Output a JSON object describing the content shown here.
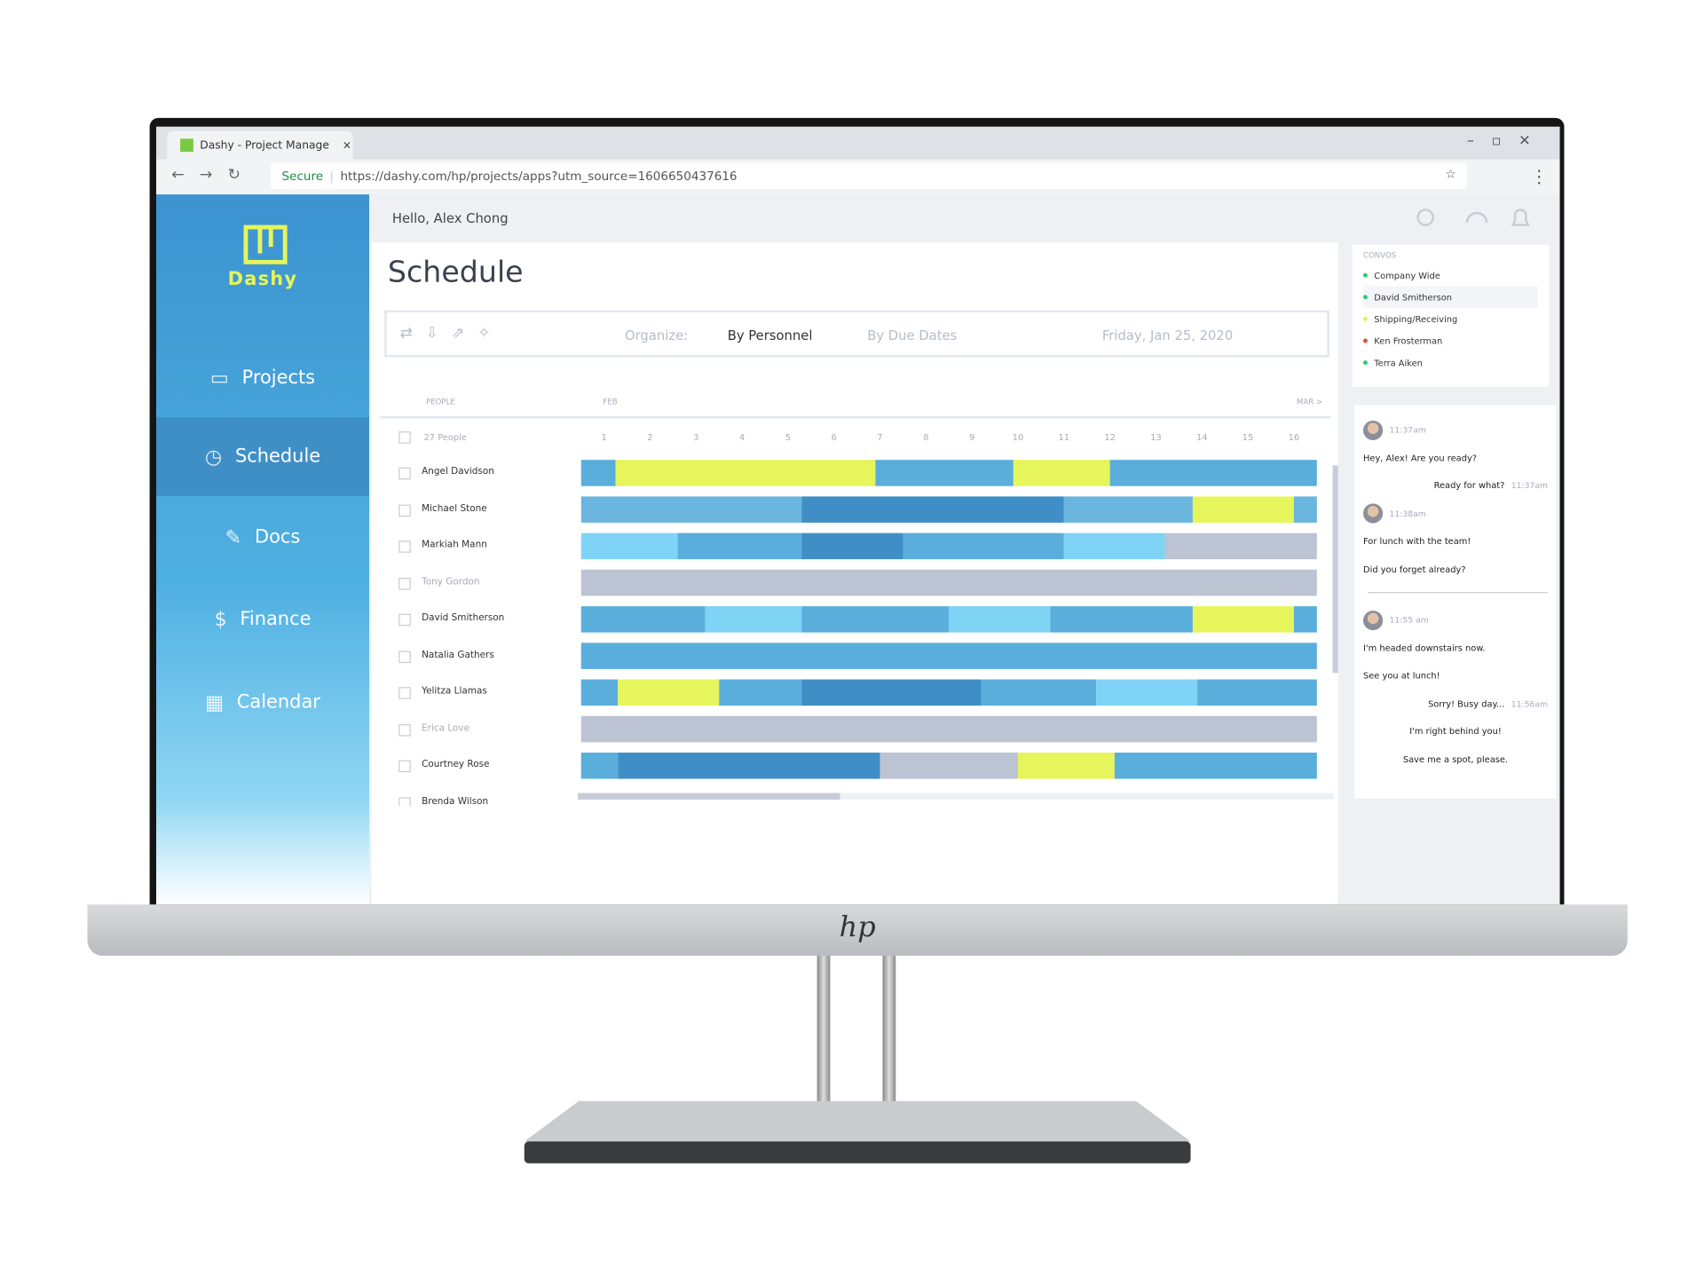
{
  "browser": {
    "tab_title": "Dashy - Project Manage",
    "secure": "Secure",
    "url": "https://dashy.com/hp/projects/apps?utm_source=1606650437616"
  },
  "sidebar": {
    "logo": "Dashy",
    "nav": [
      "Projects",
      "Schedule",
      "Docs",
      "Finance",
      "Calendar"
    ],
    "active": 1
  },
  "header": {
    "greeting": "Hello, Alex Chong"
  },
  "page": {
    "title": "Schedule"
  },
  "toolbar": {
    "organize": "Organize:",
    "by_personnel": "By Personnel",
    "by_due_dates": "By Due Dates",
    "date": "Friday, Jan 25, 2020"
  },
  "schedule": {
    "people_header": "PEOPLE",
    "month_start": "FEB",
    "month_end": "MAR >",
    "people_count": "27 People",
    "days": [
      1,
      2,
      3,
      4,
      5,
      6,
      7,
      8,
      9,
      10,
      11,
      12,
      13,
      14,
      15,
      16
    ],
    "rows": [
      {
        "name": "Angel Davidson",
        "segments": [
          {
            "start": 1,
            "end": 1.75,
            "color": "#5aaedc"
          },
          {
            "start": 1.75,
            "end": 7.4,
            "color": "#e6f55c"
          },
          {
            "start": 7.4,
            "end": 10.4,
            "color": "#5aaedc"
          },
          {
            "start": 10.4,
            "end": 12.5,
            "color": "#e6f55c"
          },
          {
            "start": 12.5,
            "end": 17,
            "color": "#5aaedc"
          }
        ]
      },
      {
        "name": "Michael Stone",
        "segments": [
          {
            "start": 1,
            "end": 5.8,
            "color": "#6ab5de"
          },
          {
            "start": 5.8,
            "end": 11.5,
            "color": "#3f8fc6"
          },
          {
            "start": 11.5,
            "end": 14.3,
            "color": "#6ab5de"
          },
          {
            "start": 14.3,
            "end": 16.5,
            "color": "#e6f55c"
          },
          {
            "start": 16.5,
            "end": 17,
            "color": "#6ab5de"
          }
        ]
      },
      {
        "name": "Markiah Mann",
        "segments": [
          {
            "start": 1,
            "end": 3.1,
            "color": "#7fd4f6"
          },
          {
            "start": 3.1,
            "end": 5.8,
            "color": "#5aaedc"
          },
          {
            "start": 5.8,
            "end": 8,
            "color": "#3f8fc6"
          },
          {
            "start": 8,
            "end": 11.5,
            "color": "#5aaedc"
          },
          {
            "start": 11.5,
            "end": 13.7,
            "color": "#7fd4f6"
          },
          {
            "start": 13.7,
            "end": 17,
            "color": "#bcc3d3"
          }
        ]
      },
      {
        "name": "Tony Gordon",
        "inactive": true,
        "segments": [
          {
            "start": 1,
            "end": 17,
            "color": "#bcc3d3"
          }
        ]
      },
      {
        "name": "David Smitherson",
        "segments": [
          {
            "start": 1,
            "end": 3.7,
            "color": "#5aaedc"
          },
          {
            "start": 3.7,
            "end": 5.8,
            "color": "#7fd4f6"
          },
          {
            "start": 5.8,
            "end": 9,
            "color": "#5aaedc"
          },
          {
            "start": 9,
            "end": 11.2,
            "color": "#7fd4f6"
          },
          {
            "start": 11.2,
            "end": 14.3,
            "color": "#5aaedc"
          },
          {
            "start": 14.3,
            "end": 16.5,
            "color": "#e6f55c"
          },
          {
            "start": 16.5,
            "end": 17,
            "color": "#5aaedc"
          }
        ]
      },
      {
        "name": "Natalia Gathers",
        "segments": [
          {
            "start": 1,
            "end": 17,
            "color": "#5aaedc"
          }
        ]
      },
      {
        "name": "Yelitza Llamas",
        "segments": [
          {
            "start": 1,
            "end": 1.8,
            "color": "#5aaedc"
          },
          {
            "start": 1.8,
            "end": 4,
            "color": "#e6f55c"
          },
          {
            "start": 4,
            "end": 5.8,
            "color": "#5aaedc"
          },
          {
            "start": 5.8,
            "end": 9.7,
            "color": "#3f8fc6"
          },
          {
            "start": 9.7,
            "end": 12.2,
            "color": "#5aaedc"
          },
          {
            "start": 12.2,
            "end": 14.4,
            "color": "#7fd4f6"
          },
          {
            "start": 14.4,
            "end": 17,
            "color": "#5aaedc"
          }
        ]
      },
      {
        "name": "Erica Love",
        "inactive": true,
        "segments": [
          {
            "start": 1,
            "end": 17,
            "color": "#bcc3d3"
          }
        ]
      },
      {
        "name": "Courtney Rose",
        "segments": [
          {
            "start": 1,
            "end": 1.8,
            "color": "#5aaedc"
          },
          {
            "start": 1.8,
            "end": 7.5,
            "color": "#3f8fc6"
          },
          {
            "start": 7.5,
            "end": 10.5,
            "color": "#bcc3d3"
          },
          {
            "start": 10.5,
            "end": 12.6,
            "color": "#e6f55c"
          },
          {
            "start": 12.6,
            "end": 17,
            "color": "#5aaedc"
          }
        ]
      },
      {
        "name": "Brenda Wilson",
        "segments": []
      }
    ]
  },
  "convos": {
    "label": "CONVOS",
    "items": [
      {
        "name": "Company Wide",
        "color": "#2ecc71"
      },
      {
        "name": "David Smitherson",
        "color": "#2ecc71"
      },
      {
        "name": "Shipping/Receiving",
        "color": "#f1e85a"
      },
      {
        "name": "Ken Frosterman",
        "color": "#e74c3c"
      },
      {
        "name": "Terra Aiken",
        "color": "#2ecc71"
      }
    ]
  },
  "chat": [
    {
      "avatar": true,
      "time": "11:37am"
    },
    {
      "text": "Hey, Alex! Are you ready?",
      "align": "left"
    },
    {
      "text": "Ready for what?",
      "time": "11:37am",
      "align": "right"
    },
    {
      "avatar": true,
      "time": "11:38am"
    },
    {
      "text": "For lunch with the team!",
      "align": "left"
    },
    {
      "text": "Did you forget already?",
      "align": "left"
    },
    {
      "divider": true
    },
    {
      "avatar": true,
      "time": "11:55 am"
    },
    {
      "text": "I'm headed downstairs now.",
      "align": "left"
    },
    {
      "text": "See you at lunch!",
      "align": "left"
    },
    {
      "text": "Sorry! Busy day...",
      "time": "11:56am",
      "align": "right"
    },
    {
      "text": "I'm right behind you!",
      "align": "center"
    },
    {
      "text": "Save me a spot, please.",
      "align": "center"
    }
  ],
  "monitor": {
    "logo": "hp"
  }
}
